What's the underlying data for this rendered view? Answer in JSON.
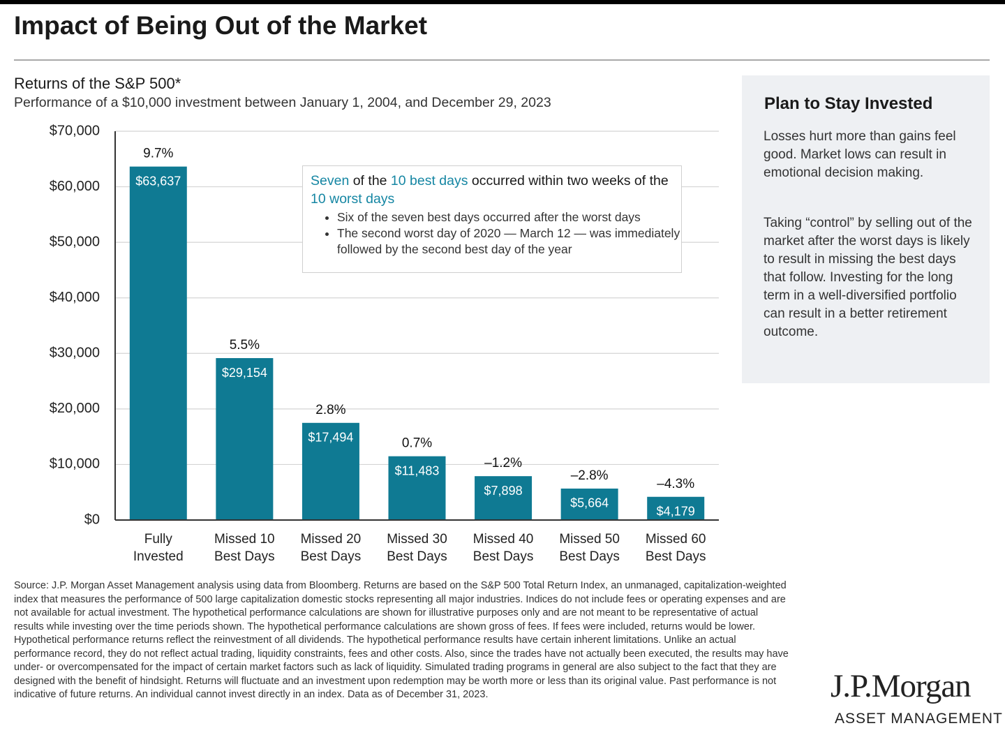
{
  "header": {
    "title": "Impact of Being Out of the Market"
  },
  "chart_data": {
    "type": "bar",
    "title": "Returns of the S&P 500*",
    "subtitle": "Performance of a $10,000 investment between January 1, 2004, and December 29, 2023",
    "categories": [
      "Fully Invested",
      "Missed 10 Best Days",
      "Missed 20 Best Days",
      "Missed 30 Best Days",
      "Missed 40 Best Days",
      "Missed 50 Best Days",
      "Missed 60 Best Days"
    ],
    "values": [
      63637,
      29154,
      17494,
      11483,
      7898,
      5664,
      4179
    ],
    "value_labels": [
      "$63,637",
      "$29,154",
      "$17,494",
      "$11,483",
      "$7,898",
      "$5,664",
      "$4,179"
    ],
    "return_labels": [
      "9.7%",
      "5.5%",
      "2.8%",
      "0.7%",
      "–1.2%",
      "–2.8%",
      "–4.3%"
    ],
    "color": "#0f7a93",
    "ylim": [
      0,
      70000
    ],
    "yticks": [
      {
        "value": 0,
        "label": "$0"
      },
      {
        "value": 10000,
        "label": "$10,000"
      },
      {
        "value": 20000,
        "label": "$20,000"
      },
      {
        "value": 30000,
        "label": "$30,000"
      },
      {
        "value": 40000,
        "label": "$40,000"
      },
      {
        "value": 50000,
        "label": "$50,000"
      },
      {
        "value": 60000,
        "label": "$60,000"
      },
      {
        "value": 70000,
        "label": "$70,000"
      }
    ],
    "grid": true
  },
  "annotation": {
    "heading": [
      {
        "text": "Seven",
        "highlight": true
      },
      {
        "text": " of the ",
        "highlight": false
      },
      {
        "text": "10 best days",
        "highlight": true
      },
      {
        "text": " occurred within two weeks of the ",
        "highlight": false
      },
      {
        "text": "10 worst days",
        "highlight": true
      }
    ],
    "bullets": [
      "Six of the seven best days occurred after the worst days",
      "The second worst day of 2020 — March 12 — was immediately followed by the second best day of the year"
    ]
  },
  "sidebar": {
    "title": "Plan to Stay Invested",
    "paragraphs": [
      "Losses hurt more than gains feel good. Market lows can result in emotional decision making.",
      "Taking “control” by selling out of the market after the worst days is likely to result in missing the best days that follow. Investing for the long term in a well-diversified portfolio can result in a better retirement outcome."
    ]
  },
  "footer": {
    "source": "Source: J.P. Morgan Asset Management analysis using data from Bloomberg. Returns are based on the S&P 500 Total Return Index, an unmanaged, capitalization-weighted index that measures the performance of 500 large capitalization domestic stocks representing all major industries. Indices do not include fees or operating expenses and are not available for actual investment. The hypothetical performance calculations are shown for illustrative purposes only and are not meant to be representative of actual results while investing over the time periods shown. The hypothetical performance calculations are shown gross of fees. If fees were included, returns would be lower. Hypothetical performance returns reflect the reinvestment of all dividends. The hypothetical performance results have certain inherent limitations. Unlike an actual performance record, they do not reflect actual trading, liquidity constraints, fees and other costs. Also, since the trades have not actually been executed, the results may have under- or overcompensated for the impact of certain market factors such as lack of liquidity. Simulated trading programs in general are also subject to the fact that they are designed with the benefit of hindsight. Returns will fluctuate and an investment upon redemption may be worth more or less than its original value. Past performance is not indicative of future returns. An individual cannot invest directly in an index. Data as of December 31, 2023.",
    "logo": "J.P.Morgan",
    "logo_subtitle": "ASSET MANAGEMENT"
  }
}
